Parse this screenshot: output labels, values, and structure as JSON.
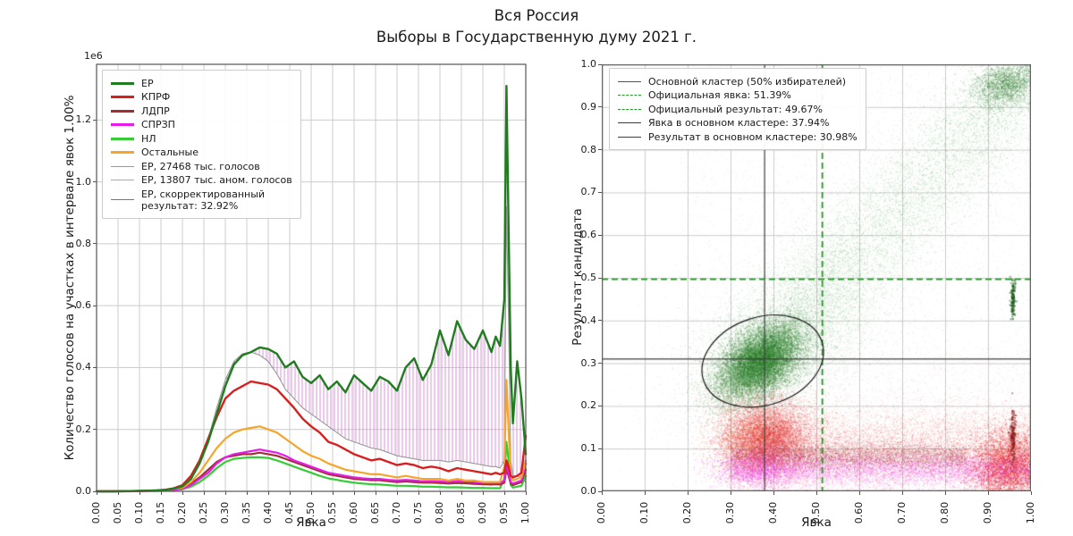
{
  "title": {
    "line1": "Вся Россия",
    "line2": "Выборы в Государственную думу 2021 г."
  },
  "colors": {
    "er": "#1f7d1f",
    "kprf": "#d62020",
    "ldpr": "#a03030",
    "sprzp": "#e81ce8",
    "nl": "#35cc35",
    "others": "#f5a62a",
    "er_normal": "#999999",
    "anomaly_hatch": "#dd85dd",
    "er_corrected": "#3c86ba",
    "scatter_green": "#2e8b2e",
    "scatter_green_dense": "#267a26",
    "scatter_red": "#e02020",
    "scatter_magenta": "#ee22ee",
    "scatter_darkred": "#a03030",
    "scatter_orange": "#f0a030",
    "ref_green_dashed": "#229922",
    "ref_dark": "#3d3d3d",
    "grid": "#cccccc",
    "spine": "#555555",
    "ellipse": "#1a1a1a"
  },
  "chart_data": [
    {
      "type": "line",
      "id": "turnout-histogram",
      "xlabel": "Явка",
      "ylabel": "Количество голосов на участках в интервале явок 1.00%",
      "offset_text": "1e6",
      "xlim": [
        0,
        1
      ],
      "ylim": [
        0,
        1380000
      ],
      "grid": true,
      "legend_position": "upper-left",
      "xticks": [
        "0.00",
        "0.05",
        "0.10",
        "0.15",
        "0.20",
        "0.25",
        "0.30",
        "0.35",
        "0.40",
        "0.45",
        "0.50",
        "0.55",
        "0.60",
        "0.65",
        "0.70",
        "0.75",
        "0.80",
        "0.85",
        "0.90",
        "0.95",
        "1.00"
      ],
      "yticks": [
        "0.0",
        "0.2",
        "0.4",
        "0.6",
        "0.8",
        "1.0",
        "1.2"
      ],
      "legend": [
        {
          "label": "ЕР",
          "color": "#1f7d1f",
          "lw": 3,
          "dash": false
        },
        {
          "label": "КПРФ",
          "color": "#d62020",
          "lw": 3,
          "dash": false
        },
        {
          "label": "ЛДПР",
          "color": "#a03030",
          "lw": 3,
          "dash": false
        },
        {
          "label": "СПРЗП",
          "color": "#e81ce8",
          "lw": 3,
          "dash": false
        },
        {
          "label": "НЛ",
          "color": "#35cc35",
          "lw": 3,
          "dash": false
        },
        {
          "label": "Остальные",
          "color": "#f5a62a",
          "lw": 3,
          "dash": false
        },
        {
          "label": "ЕР, 27468 тыс. голосов",
          "color": "#999999",
          "lw": 1.5,
          "dash": false
        },
        {
          "label": "ЕР, 13807 тыс. аном. голосов",
          "color": "#dd85dd",
          "lw": 1.5,
          "dash": false
        },
        {
          "label": "ЕР, скорректированный\nрезультат: 32.92%",
          "color": "#3c86ba",
          "lw": 1.8,
          "dash": false
        }
      ],
      "x": [
        0,
        0.02,
        0.04,
        0.06,
        0.08,
        0.1,
        0.12,
        0.14,
        0.16,
        0.18,
        0.2,
        0.22,
        0.24,
        0.26,
        0.28,
        0.3,
        0.32,
        0.34,
        0.36,
        0.38,
        0.4,
        0.42,
        0.44,
        0.46,
        0.48,
        0.5,
        0.52,
        0.54,
        0.56,
        0.58,
        0.6,
        0.62,
        0.64,
        0.66,
        0.68,
        0.7,
        0.72,
        0.74,
        0.76,
        0.78,
        0.8,
        0.82,
        0.84,
        0.86,
        0.88,
        0.9,
        0.92,
        0.93,
        0.94,
        0.95,
        0.955,
        0.96,
        0.965,
        0.97,
        0.98,
        0.99,
        1.0
      ],
      "units": "1e6 votes per 1% turnout bin",
      "series": [
        {
          "name": "ЕР, 27468 тыс. голосов",
          "key": "er_normal",
          "values": [
            0,
            0,
            0,
            0.001,
            0.001,
            0.002,
            0.002,
            0.003,
            0.005,
            0.01,
            0.02,
            0.05,
            0.1,
            0.17,
            0.27,
            0.36,
            0.42,
            0.445,
            0.45,
            0.44,
            0.42,
            0.38,
            0.33,
            0.3,
            0.27,
            0.25,
            0.23,
            0.21,
            0.19,
            0.17,
            0.16,
            0.15,
            0.14,
            0.135,
            0.125,
            0.115,
            0.11,
            0.105,
            0.1,
            0.1,
            0.1,
            0.095,
            0.1,
            0.095,
            0.09,
            0.085,
            0.08,
            0.08,
            0.075,
            0.1,
            0.92,
            0.55,
            0.1,
            0.05,
            0.05,
            0.045,
            0.03
          ]
        },
        {
          "name": "НЛ",
          "key": "nl",
          "values": [
            0,
            0,
            0,
            0,
            0,
            0.001,
            0.001,
            0.001,
            0.002,
            0.004,
            0.007,
            0.015,
            0.03,
            0.05,
            0.075,
            0.095,
            0.105,
            0.108,
            0.11,
            0.11,
            0.108,
            0.1,
            0.09,
            0.08,
            0.07,
            0.06,
            0.05,
            0.042,
            0.037,
            0.032,
            0.028,
            0.025,
            0.023,
            0.022,
            0.02,
            0.018,
            0.018,
            0.017,
            0.015,
            0.015,
            0.014,
            0.013,
            0.013,
            0.012,
            0.011,
            0.011,
            0.01,
            0.01,
            0.01,
            0.04,
            0.16,
            0.1,
            0.02,
            0.012,
            0.015,
            0.018,
            0.05
          ]
        },
        {
          "name": "ЛДПР",
          "key": "ldpr",
          "values": [
            0,
            0,
            0,
            0,
            0.001,
            0.001,
            0.002,
            0.002,
            0.004,
            0.007,
            0.012,
            0.025,
            0.045,
            0.07,
            0.095,
            0.11,
            0.115,
            0.12,
            0.12,
            0.125,
            0.12,
            0.115,
            0.105,
            0.095,
            0.085,
            0.075,
            0.065,
            0.055,
            0.05,
            0.045,
            0.04,
            0.038,
            0.036,
            0.036,
            0.033,
            0.03,
            0.032,
            0.03,
            0.028,
            0.028,
            0.027,
            0.025,
            0.027,
            0.026,
            0.024,
            0.023,
            0.022,
            0.023,
            0.022,
            0.028,
            0.07,
            0.05,
            0.025,
            0.02,
            0.025,
            0.03,
            0.07
          ]
        },
        {
          "name": "СПРЗП",
          "key": "sprzp",
          "values": [
            0,
            0,
            0,
            0,
            0.001,
            0.001,
            0.001,
            0.002,
            0.003,
            0.005,
            0.008,
            0.02,
            0.04,
            0.06,
            0.09,
            0.11,
            0.12,
            0.125,
            0.13,
            0.135,
            0.13,
            0.125,
            0.115,
            0.1,
            0.09,
            0.08,
            0.07,
            0.06,
            0.055,
            0.05,
            0.045,
            0.042,
            0.04,
            0.04,
            0.037,
            0.035,
            0.037,
            0.035,
            0.032,
            0.033,
            0.032,
            0.03,
            0.033,
            0.032,
            0.03,
            0.028,
            0.027,
            0.028,
            0.027,
            0.035,
            0.09,
            0.06,
            0.03,
            0.025,
            0.03,
            0.035,
            0.09
          ]
        },
        {
          "name": "Остальные",
          "key": "others",
          "values": [
            0,
            0,
            0,
            0.001,
            0.001,
            0.001,
            0.002,
            0.003,
            0.004,
            0.008,
            0.012,
            0.03,
            0.06,
            0.1,
            0.14,
            0.17,
            0.19,
            0.2,
            0.205,
            0.21,
            0.2,
            0.19,
            0.17,
            0.15,
            0.13,
            0.115,
            0.105,
            0.09,
            0.08,
            0.07,
            0.065,
            0.06,
            0.055,
            0.055,
            0.05,
            0.045,
            0.05,
            0.045,
            0.04,
            0.04,
            0.04,
            0.035,
            0.04,
            0.035,
            0.035,
            0.03,
            0.03,
            0.03,
            0.03,
            0.08,
            0.36,
            0.2,
            0.05,
            0.035,
            0.04,
            0.045,
            0.1
          ]
        },
        {
          "name": "КПРФ",
          "key": "kprf",
          "values": [
            0,
            0,
            0,
            0.001,
            0.001,
            0.001,
            0.002,
            0.003,
            0.005,
            0.01,
            0.02,
            0.05,
            0.1,
            0.17,
            0.24,
            0.3,
            0.325,
            0.34,
            0.355,
            0.35,
            0.345,
            0.33,
            0.3,
            0.27,
            0.235,
            0.21,
            0.19,
            0.16,
            0.15,
            0.135,
            0.12,
            0.11,
            0.1,
            0.105,
            0.095,
            0.085,
            0.09,
            0.085,
            0.075,
            0.08,
            0.075,
            0.065,
            0.075,
            0.07,
            0.065,
            0.06,
            0.055,
            0.06,
            0.055,
            0.06,
            0.1,
            0.08,
            0.05,
            0.045,
            0.05,
            0.06,
            0.18
          ]
        },
        {
          "name": "ЕР",
          "key": "er",
          "values": [
            0,
            0,
            0,
            0.001,
            0.001,
            0.002,
            0.002,
            0.003,
            0.005,
            0.009,
            0.016,
            0.04,
            0.09,
            0.16,
            0.25,
            0.34,
            0.41,
            0.44,
            0.45,
            0.465,
            0.46,
            0.445,
            0.4,
            0.42,
            0.37,
            0.35,
            0.375,
            0.33,
            0.355,
            0.32,
            0.375,
            0.35,
            0.325,
            0.37,
            0.355,
            0.325,
            0.4,
            0.43,
            0.36,
            0.41,
            0.52,
            0.44,
            0.55,
            0.49,
            0.46,
            0.52,
            0.45,
            0.5,
            0.47,
            0.62,
            1.31,
            0.85,
            0.4,
            0.22,
            0.42,
            0.3,
            0.12
          ]
        }
      ],
      "anomaly_fill": {
        "between": [
          "er_normal",
          "er"
        ],
        "label": "ЕР, 13807 тыс. аном. голосов",
        "hatch": "vertical",
        "from_x": 0.26
      },
      "annotations": {
        "er_total_votes_thousands": 27468,
        "er_anomalous_votes_thousands": 13807,
        "er_corrected_result_pct": 32.92
      }
    },
    {
      "type": "scatter",
      "id": "turnout-vs-result",
      "xlabel": "Явка",
      "ylabel": "Результат кандидата",
      "xlim": [
        0,
        1
      ],
      "ylim": [
        0,
        1
      ],
      "grid": true,
      "legend_position": "upper-left",
      "xticks": [
        "0.00",
        "0.10",
        "0.20",
        "0.30",
        "0.40",
        "0.50",
        "0.60",
        "0.70",
        "0.80",
        "0.90",
        "1.00"
      ],
      "yticks": [
        "0.0",
        "0.1",
        "0.2",
        "0.3",
        "0.4",
        "0.5",
        "0.6",
        "0.7",
        "0.8",
        "0.9",
        "1.0"
      ],
      "legend": [
        {
          "label": "Основной кластер (50% избирателей)",
          "color": "#555555",
          "lw": 1.5,
          "dash": false
        },
        {
          "label": "Официальная явка: 51.39%",
          "color": "#229922",
          "lw": 1.5,
          "dash": true
        },
        {
          "label": "Официальный результат: 49.67%",
          "color": "#229922",
          "lw": 1.5,
          "dash": true
        },
        {
          "label": "Явка в основном кластере: 37.94%",
          "color": "#3d3d3d",
          "lw": 1.5,
          "dash": false
        },
        {
          "label": "Результат в основном кластере: 30.98%",
          "color": "#3d3d3d",
          "lw": 1.5,
          "dash": false
        }
      ],
      "ref_lines": {
        "official_turnout": 0.5139,
        "official_result": 0.4967,
        "cluster_turnout": 0.3794,
        "cluster_result": 0.3098
      },
      "main_cluster_ellipse": {
        "cx": 0.375,
        "cy": 0.305,
        "rx": 0.145,
        "ry": 0.103,
        "rot_deg": -18
      },
      "clusters": [
        {
          "name": "er-sparse-field",
          "color": "#2e8b2e",
          "kind": "uniform",
          "n": 2400,
          "x0": 0.18,
          "x1": 1.0,
          "y0": 0.25,
          "y1": 1.0,
          "alpha": 0.14,
          "size": 1
        },
        {
          "name": "er-halo",
          "color": "#2e8b2e",
          "kind": "gauss",
          "n": 6500,
          "cx": 0.43,
          "cy": 0.36,
          "sx": 0.12,
          "sy": 0.11,
          "rho": 0.5,
          "alpha": 0.16,
          "size": 1
        },
        {
          "name": "er-comet",
          "color": "#2e8b2e",
          "kind": "diag",
          "n": 7500,
          "x0": 0.45,
          "y0": 0.42,
          "x1": 1.0,
          "y1": 0.97,
          "spread": 0.075,
          "alpha": 0.2,
          "size": 1
        },
        {
          "name": "er-main-cluster",
          "color": "#267a26",
          "kind": "gauss",
          "n": 15000,
          "cx": 0.37,
          "cy": 0.305,
          "sx": 0.05,
          "sy": 0.045,
          "rho": 0.45,
          "alpha": 0.22,
          "size": 1.3
        },
        {
          "name": "er-topright-blob",
          "color": "#267a26",
          "kind": "gauss",
          "n": 2200,
          "cx": 0.945,
          "cy": 0.955,
          "sx": 0.04,
          "sy": 0.028,
          "rho": 0.3,
          "alpha": 0.28,
          "size": 1.2
        },
        {
          "name": "er-right-streak",
          "color": "#1a5c1a",
          "kind": "gauss",
          "n": 130,
          "cx": 0.958,
          "cy": 0.45,
          "sx": 0.003,
          "sy": 0.022,
          "rho": 0,
          "alpha": 0.5,
          "size": 2
        },
        {
          "name": "kprf-sparse",
          "color": "#e02020",
          "kind": "uniform",
          "n": 1800,
          "x0": 0.22,
          "x1": 1.0,
          "y0": 0.02,
          "y1": 0.34,
          "alpha": 0.12,
          "size": 1
        },
        {
          "name": "kprf-main",
          "color": "#e02020",
          "kind": "gauss",
          "n": 9000,
          "cx": 0.38,
          "cy": 0.125,
          "sx": 0.055,
          "sy": 0.042,
          "rho": 0,
          "alpha": 0.22,
          "size": 1.2
        },
        {
          "name": "kprf-band-right",
          "color": "#e02020",
          "kind": "band",
          "n": 9500,
          "x0": 0.35,
          "x1": 1.0,
          "cy": 0.1,
          "sy": 0.05,
          "alpha": 0.2,
          "size": 1
        },
        {
          "name": "kprf-far-right",
          "color": "#e02020",
          "kind": "gauss",
          "n": 4200,
          "cx": 0.95,
          "cy": 0.055,
          "sx": 0.045,
          "sy": 0.04,
          "rho": 0,
          "alpha": 0.32,
          "size": 1.3
        },
        {
          "name": "ldpr-band",
          "color": "#a03030",
          "kind": "band",
          "n": 5200,
          "x0": 0.3,
          "x1": 0.85,
          "cy": 0.082,
          "sy": 0.016,
          "alpha": 0.28,
          "size": 1
        },
        {
          "name": "sprzp-band",
          "color": "#ee22ee",
          "kind": "band",
          "n": 6200,
          "x0": 0.3,
          "x1": 1.0,
          "cy": 0.05,
          "sy": 0.02,
          "alpha": 0.26,
          "size": 1
        },
        {
          "name": "sprzp-blob",
          "color": "#ee22ee",
          "kind": "gauss",
          "n": 1600,
          "cx": 0.36,
          "cy": 0.055,
          "sx": 0.05,
          "sy": 0.025,
          "rho": 0,
          "alpha": 0.28,
          "size": 1.2
        },
        {
          "name": "others-orange",
          "color": "#f0a030",
          "kind": "gauss",
          "n": 900,
          "cx": 0.34,
          "cy": 0.1,
          "sx": 0.04,
          "sy": 0.05,
          "rho": 0,
          "alpha": 0.3,
          "size": 1
        },
        {
          "name": "darkred-streak",
          "color": "#8b1a1a",
          "kind": "gauss",
          "n": 160,
          "cx": 0.958,
          "cy": 0.13,
          "sx": 0.003,
          "sy": 0.03,
          "rho": 0,
          "alpha": 0.5,
          "size": 2
        }
      ]
    }
  ]
}
